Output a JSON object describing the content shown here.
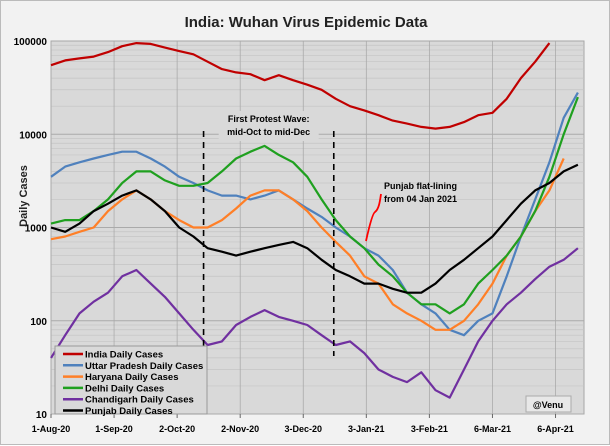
{
  "chart_data": {
    "type": "line",
    "title": "India: Wuhan Virus Epidemic Data",
    "ylabel": "Daily Cases",
    "yscale": "log",
    "ylim": [
      10,
      100000
    ],
    "yticks": [
      "100000",
      "10000",
      "1000",
      "100",
      "10"
    ],
    "xlim": [
      "2020-08-01",
      "2021-04-20"
    ],
    "xticks": [
      {
        "label": "1-Aug-20",
        "date": "2020-08-01"
      },
      {
        "label": "1-Sep-20",
        "date": "2020-09-01"
      },
      {
        "label": "2-Oct-20",
        "date": "2020-10-02"
      },
      {
        "label": "2-Nov-20",
        "date": "2020-11-02"
      },
      {
        "label": "3-Dec-20",
        "date": "2020-12-03"
      },
      {
        "label": "3-Jan-21",
        "date": "2021-01-03"
      },
      {
        "label": "3-Feb-21",
        "date": "2021-02-03"
      },
      {
        "label": "6-Mar-21",
        "date": "2021-03-06"
      },
      {
        "label": "6-Apr-21",
        "date": "2021-04-06"
      }
    ],
    "grid": true,
    "legend_placement": "bottom-left",
    "x": [
      "2020-08-01",
      "2020-08-08",
      "2020-08-15",
      "2020-08-22",
      "2020-08-29",
      "2020-09-05",
      "2020-09-12",
      "2020-09-19",
      "2020-09-26",
      "2020-10-03",
      "2020-10-10",
      "2020-10-17",
      "2020-10-24",
      "2020-10-31",
      "2020-11-07",
      "2020-11-14",
      "2020-11-21",
      "2020-11-28",
      "2020-12-05",
      "2020-12-12",
      "2020-12-19",
      "2020-12-26",
      "2021-01-02",
      "2021-01-09",
      "2021-01-16",
      "2021-01-23",
      "2021-01-30",
      "2021-02-06",
      "2021-02-13",
      "2021-02-20",
      "2021-02-27",
      "2021-03-06",
      "2021-03-13",
      "2021-03-20",
      "2021-03-27",
      "2021-04-03",
      "2021-04-10",
      "2021-04-17"
    ],
    "series": [
      {
        "name": "India Daily Cases",
        "color": "#c00000",
        "values": [
          55000,
          62000,
          65000,
          68000,
          76000,
          88000,
          95000,
          93000,
          85000,
          78000,
          72000,
          60000,
          50000,
          46000,
          44000,
          38000,
          43000,
          38000,
          34000,
          30000,
          24000,
          20000,
          18000,
          16000,
          14000,
          13000,
          12000,
          11500,
          12000,
          13500,
          16000,
          17000,
          24000,
          40000,
          60000,
          95000,
          null,
          null
        ]
      },
      {
        "name": "Uttar Pradesh Daily Cases",
        "color": "#4f81bd",
        "values": [
          3500,
          4500,
          5000,
          5500,
          6000,
          6500,
          6500,
          5500,
          4500,
          3500,
          3000,
          2500,
          2200,
          2200,
          2000,
          2200,
          2500,
          2000,
          1600,
          1300,
          1000,
          800,
          600,
          500,
          350,
          200,
          150,
          120,
          80,
          70,
          100,
          120,
          300,
          800,
          2000,
          5000,
          15000,
          28000
        ]
      },
      {
        "name": "Haryana Daily Cases",
        "color": "#ff7f27",
        "values": [
          750,
          800,
          900,
          1000,
          1500,
          2000,
          2500,
          2000,
          1500,
          1200,
          1000,
          1000,
          1200,
          1600,
          2200,
          2500,
          2500,
          2000,
          1500,
          1000,
          700,
          500,
          300,
          250,
          150,
          120,
          100,
          80,
          80,
          100,
          150,
          250,
          500,
          800,
          1500,
          2500,
          5500,
          null
        ]
      },
      {
        "name": "Delhi Daily Cases",
        "color": "#1fa01f",
        "values": [
          1100,
          1200,
          1200,
          1500,
          2000,
          3000,
          4000,
          4000,
          3200,
          2800,
          2800,
          3000,
          4000,
          5500,
          6500,
          7500,
          6000,
          5000,
          3500,
          2000,
          1200,
          800,
          600,
          400,
          300,
          200,
          150,
          150,
          120,
          150,
          250,
          350,
          500,
          800,
          1500,
          3500,
          10000,
          25000
        ]
      },
      {
        "name": "Chandigarh Daily Cases",
        "color": "#7030a0",
        "values": [
          40,
          70,
          120,
          160,
          200,
          300,
          350,
          250,
          180,
          120,
          80,
          55,
          60,
          90,
          110,
          130,
          110,
          100,
          90,
          70,
          55,
          60,
          45,
          30,
          25,
          22,
          28,
          18,
          15,
          30,
          60,
          100,
          150,
          200,
          280,
          380,
          450,
          600
        ]
      },
      {
        "name": "Punjab Daily Cases",
        "color": "#000000",
        "values": [
          1000,
          900,
          1100,
          1500,
          1800,
          2200,
          2500,
          2000,
          1500,
          1000,
          800,
          600,
          550,
          500,
          550,
          600,
          650,
          700,
          600,
          450,
          350,
          300,
          250,
          250,
          220,
          200,
          200,
          250,
          350,
          450,
          600,
          800,
          1200,
          1800,
          2500,
          3000,
          4000,
          4700
        ]
      }
    ],
    "annotations": [
      {
        "text_lines": [
          "First Protest Wave:",
          "mid-Oct to mid-Dec"
        ],
        "range": [
          "2020-10-15",
          "2020-12-18"
        ]
      },
      {
        "text_lines": [
          "Punjab flat-lining",
          "from 04 Jan 2021"
        ],
        "color": "#ff0000"
      }
    ],
    "credit": "@Venu"
  }
}
